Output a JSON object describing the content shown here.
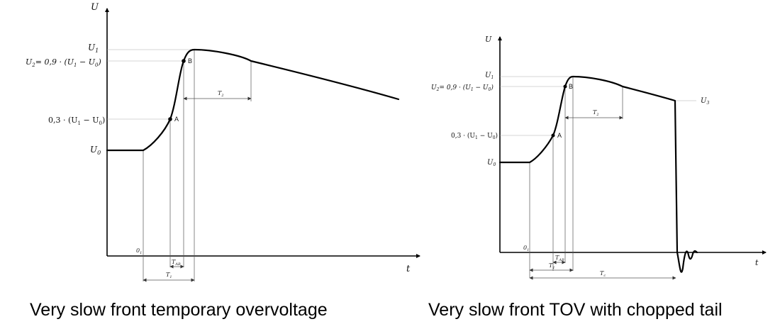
{
  "left_diagram": {
    "axis_y": "U",
    "axis_x": "t",
    "label_U1": "U",
    "label_U1_sub": "1",
    "label_U2": "U",
    "label_U2_sub": "2",
    "label_U2_expr": "= 0,9 · (U",
    "label_U2_mid": " − U",
    "label_U2_end": ")",
    "label_03": "0,3 · (U",
    "label_03_mid": " − U",
    "label_03_end": ")",
    "label_U0": "U",
    "label_U0_sub": "0",
    "sub_1": "1",
    "sub_0": "0",
    "point_A": "A",
    "point_B": "B",
    "origin": "0",
    "origin_sub": "1",
    "t_ab": "T",
    "t_ab_sub": "AB",
    "t1": "T",
    "t1_sub": "1",
    "t2": "T",
    "t2_sub": "2",
    "caption": "Very slow front temporary overvoltage"
  },
  "right_diagram": {
    "axis_y": "U",
    "axis_x": "t",
    "label_U1": "U",
    "label_U1_sub": "1",
    "label_U2": "U",
    "label_U2_sub": "2",
    "label_U2_expr": "= 0,9 · (U",
    "label_U2_mid": " − U",
    "label_U2_end": ")",
    "label_03": "0,3 · (U",
    "label_03_mid": " − U",
    "label_03_end": ")",
    "label_U0": "U",
    "label_U0_sub": "0",
    "label_U3": "U",
    "label_U3_sub": "3",
    "sub_1": "1",
    "sub_0": "0",
    "point_A": "A",
    "point_B": "B",
    "origin": "0",
    "origin_sub": "1",
    "t_ab": "T",
    "t_ab_sub": "AB",
    "t1": "T",
    "t1_sub": "1",
    "t2": "T",
    "t2_sub": "2",
    "tc": "T",
    "tc_sub": "c",
    "caption": "Very slow front TOV with chopped tail"
  }
}
